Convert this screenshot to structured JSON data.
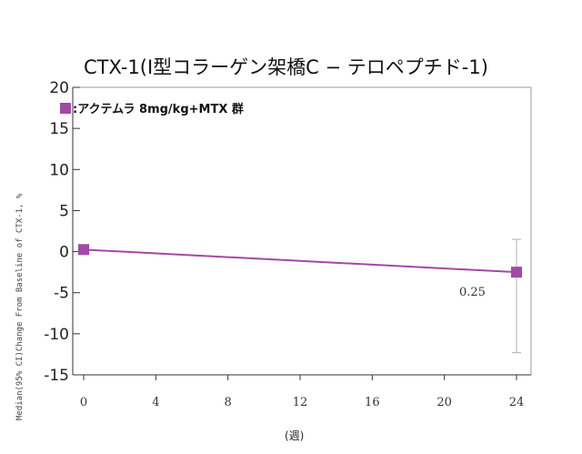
{
  "chart_data": {
    "type": "line",
    "title": "CTX-1(Ⅰ型コラーゲン架橋C − テロペプチド-1)",
    "ylabel": "Median(95% CI)Change From Baseline of CTX-1, %",
    "xlabel": "(週)",
    "x_ticks": [
      0,
      4,
      8,
      12,
      16,
      20,
      24
    ],
    "y_ticks": [
      20,
      15,
      10,
      5,
      0,
      -5,
      -10,
      -15
    ],
    "xlim": [
      0,
      24
    ],
    "ylim": [
      -15,
      20
    ],
    "grid": false,
    "legend_position": "top-left",
    "series": [
      {
        "name": ":アクテムラ 8mg/kg+MTX 群",
        "color": "#a04aa6",
        "x": [
          0,
          24
        ],
        "y": [
          0.25,
          -2.5
        ],
        "ci_upper": [
          null,
          1.5
        ],
        "ci_lower": [
          null,
          -12.3
        ]
      }
    ],
    "annotations": [
      {
        "text": "0.25"
      }
    ]
  }
}
